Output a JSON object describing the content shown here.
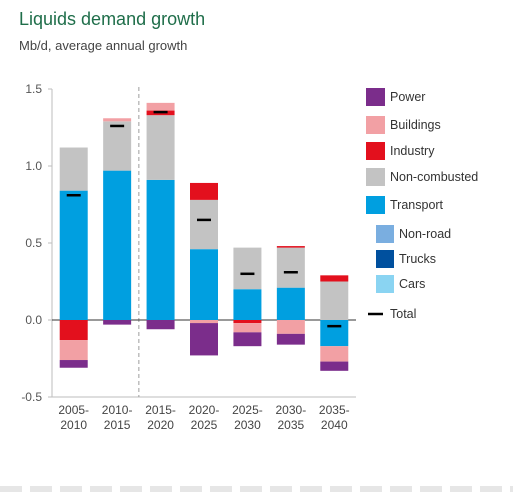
{
  "title": "Liquids demand growth",
  "subtitle": "Mb/d, average annual growth",
  "chart_data": {
    "type": "bar",
    "stacked": true,
    "categories": [
      [
        "2005-",
        "2010"
      ],
      [
        "2010-",
        "2015"
      ],
      [
        "2015-",
        "2020"
      ],
      [
        "2020-",
        "2025"
      ],
      [
        "2025-",
        "2030"
      ],
      [
        "2030-",
        "2035"
      ],
      [
        "2035-",
        "2040"
      ]
    ],
    "ylim": [
      -0.5,
      1.5
    ],
    "yticks": [
      "1.5",
      "1.0",
      "0.5",
      "0.0",
      "-0.5"
    ],
    "ytick_values": [
      1.5,
      1.0,
      0.5,
      0.0,
      -0.5
    ],
    "grid": false,
    "divider_after_category": 1,
    "legend_position": "right",
    "series": [
      {
        "name": "Transport",
        "color": "#009fe0",
        "values": [
          0.84,
          0.97,
          0.91,
          0.46,
          0.2,
          0.21,
          -0.17
        ]
      },
      {
        "name": "Non-combusted",
        "color": "#c3c3c3",
        "values": [
          0.28,
          0.32,
          0.42,
          0.32,
          0.27,
          0.26,
          0.25
        ]
      },
      {
        "name": "Industry",
        "color": "#e3101d",
        "values": [
          -0.13,
          0.0,
          0.03,
          0.11,
          -0.02,
          0.01,
          0.04
        ]
      },
      {
        "name": "Buildings",
        "color": "#f2a0a4",
        "values": [
          -0.13,
          0.02,
          0.05,
          -0.02,
          -0.06,
          -0.09,
          -0.1
        ]
      },
      {
        "name": "Power",
        "color": "#7b2d8b",
        "values": [
          -0.05,
          -0.03,
          -0.06,
          -0.21,
          -0.09,
          -0.07,
          -0.06
        ]
      }
    ],
    "total": {
      "name": "Total",
      "color": "#000000",
      "values": [
        0.81,
        1.26,
        1.35,
        0.65,
        0.3,
        0.31,
        -0.04
      ]
    },
    "legend": [
      {
        "label": "Power",
        "color": "#7b2d8b",
        "kind": "swatch"
      },
      {
        "label": "Buildings",
        "color": "#f2a0a4",
        "kind": "swatch"
      },
      {
        "label": "Industry",
        "color": "#e3101d",
        "kind": "swatch"
      },
      {
        "label": "Non-combusted",
        "color": "#c3c3c3",
        "kind": "swatch"
      },
      {
        "label": "Transport",
        "color": "#009fe0",
        "kind": "swatch"
      },
      {
        "label": "Non-road",
        "color": "#7aaee0",
        "kind": "subswatch"
      },
      {
        "label": "Trucks",
        "color": "#00509e",
        "kind": "subswatch"
      },
      {
        "label": "Cars",
        "color": "#8ad4f2",
        "kind": "subswatch"
      },
      {
        "label": "Total",
        "color": "#000000",
        "kind": "line"
      }
    ]
  }
}
